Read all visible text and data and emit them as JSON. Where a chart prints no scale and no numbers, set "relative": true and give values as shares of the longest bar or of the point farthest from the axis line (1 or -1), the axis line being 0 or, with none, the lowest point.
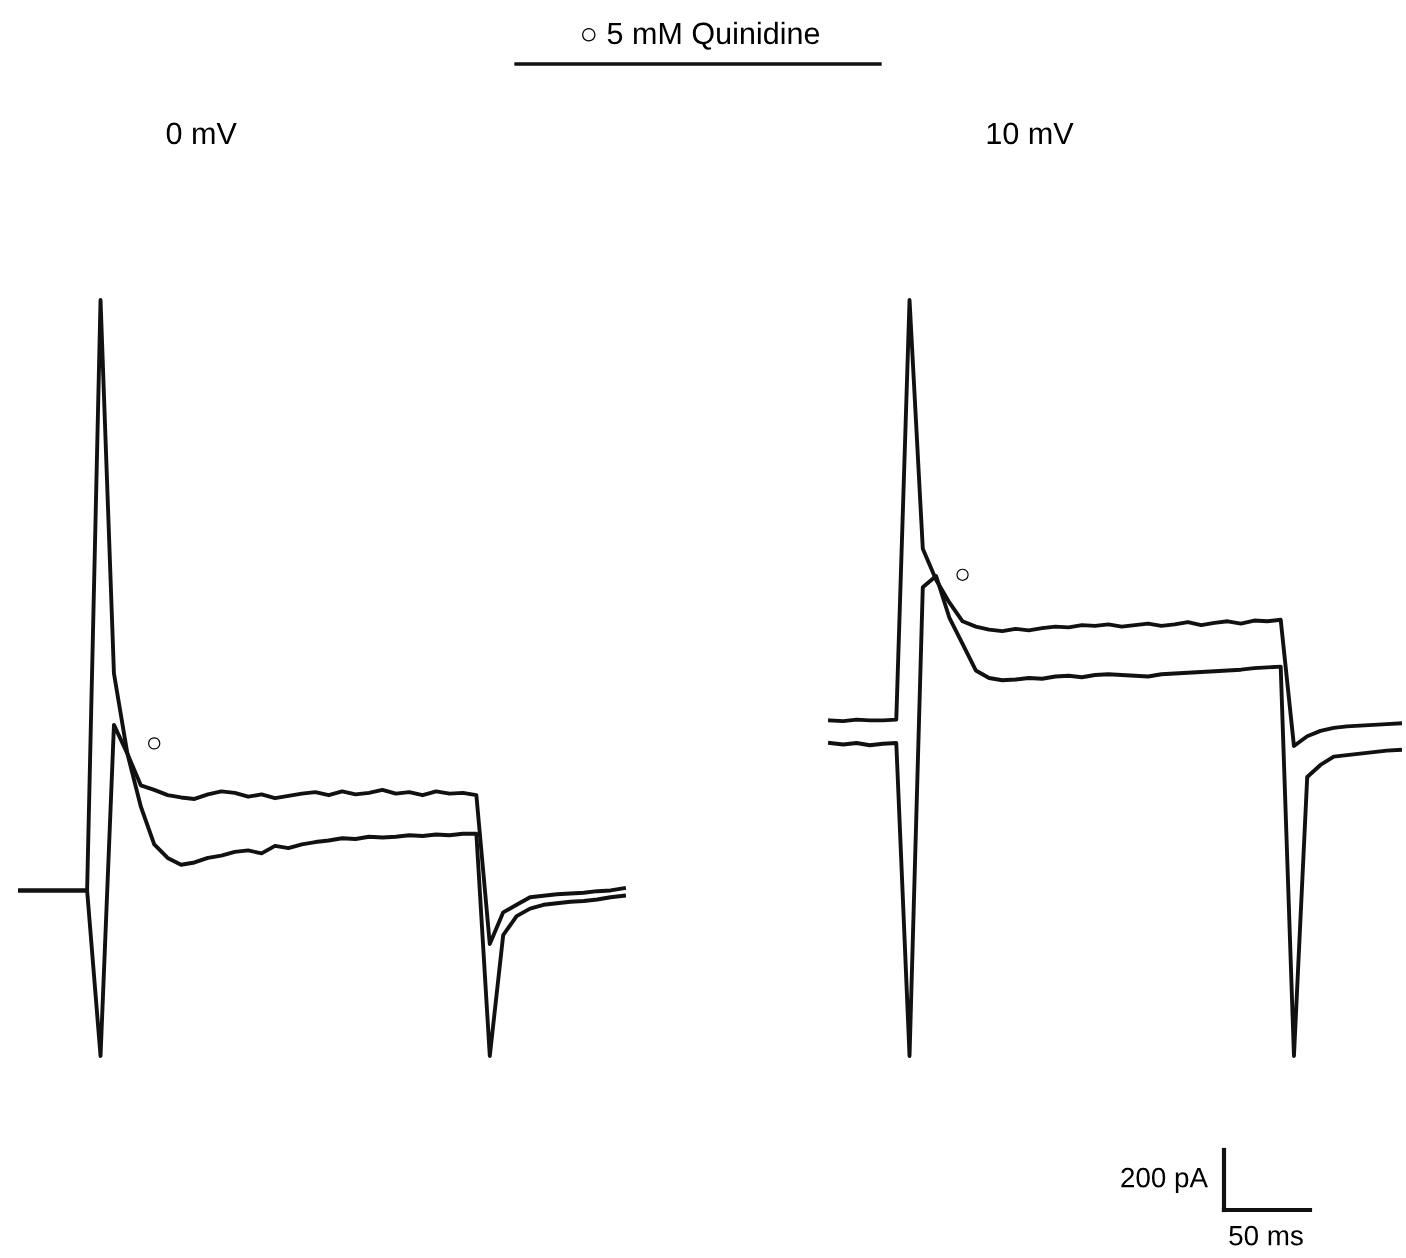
{
  "chart_data": [
    {
      "type": "line",
      "title": "0 mV",
      "relative": true,
      "annotations": [
        "○ 5 mM Quinidine"
      ],
      "categories": [
        null,
        null,
        null,
        null,
        null,
        null,
        null,
        null,
        null,
        null,
        null,
        null,
        null,
        null,
        null,
        null,
        null,
        null,
        null,
        null,
        null,
        null,
        null,
        null,
        null,
        null,
        null,
        null,
        null,
        null,
        null,
        null,
        null,
        null,
        null,
        null,
        null,
        null,
        null,
        null,
        null,
        null,
        null,
        null,
        null,
        null
      ],
      "series": [
        {
          "name": "○",
          "color": "#111111",
          "values": [
            0.219,
            0.219,
            0.219,
            0.219,
            0.219,
            0.219,
            1.0,
            0.506,
            0.4,
            0.358,
            0.352,
            0.345,
            0.342,
            0.34,
            0.346,
            0.35,
            0.348,
            0.343,
            0.346,
            0.341,
            0.344,
            0.347,
            0.349,
            0.345,
            0.35,
            0.346,
            0.348,
            0.352,
            0.347,
            0.349,
            0.345,
            0.35,
            0.347,
            0.348,
            0.345,
            0.148,
            0.19,
            0.2,
            0.21,
            0.212,
            0.214,
            0.215,
            0.216,
            0.218,
            0.219,
            0.222
          ]
        },
        {
          "color": "#111111",
          "values": [
            0.219,
            0.219,
            0.219,
            0.219,
            0.219,
            0.219,
            0.0,
            0.438,
            0.4,
            0.33,
            0.28,
            0.262,
            0.253,
            0.256,
            0.262,
            0.265,
            0.27,
            0.272,
            0.268,
            0.278,
            0.275,
            0.28,
            0.283,
            0.285,
            0.288,
            0.287,
            0.29,
            0.289,
            0.29,
            0.292,
            0.291,
            0.293,
            0.292,
            0.294,
            0.294,
            0.0,
            0.16,
            0.185,
            0.195,
            0.2,
            0.202,
            0.204,
            0.205,
            0.207,
            0.21,
            0.212
          ]
        }
      ]
    },
    {
      "type": "line",
      "title": "10 mV",
      "relative": true,
      "annotations": [
        "200 pA",
        "50 ms"
      ],
      "categories": [
        null,
        null,
        null,
        null,
        null,
        null,
        null,
        null,
        null,
        null,
        null,
        null,
        null,
        null,
        null,
        null,
        null,
        null,
        null,
        null,
        null,
        null,
        null,
        null,
        null,
        null,
        null,
        null,
        null,
        null,
        null,
        null,
        null,
        null,
        null,
        null,
        null,
        null,
        null,
        null,
        null,
        null,
        null,
        null
      ],
      "series": [
        {
          "name": "○",
          "color": "#111111",
          "values": [
            0.444,
            0.443,
            0.445,
            0.444,
            0.444,
            0.445,
            1.0,
            0.671,
            0.63,
            0.6,
            0.575,
            0.568,
            0.564,
            0.562,
            0.565,
            0.563,
            0.566,
            0.568,
            0.567,
            0.57,
            0.569,
            0.571,
            0.568,
            0.57,
            0.572,
            0.569,
            0.571,
            0.574,
            0.57,
            0.573,
            0.575,
            0.572,
            0.576,
            0.575,
            0.577,
            0.41,
            0.423,
            0.43,
            0.434,
            0.436,
            0.437,
            0.438,
            0.439,
            0.44
          ]
        },
        {
          "color": "#111111",
          "values": [
            0.414,
            0.412,
            0.414,
            0.411,
            0.413,
            0.414,
            0.0,
            0.62,
            0.635,
            0.58,
            0.545,
            0.51,
            0.5,
            0.497,
            0.498,
            0.5,
            0.499,
            0.502,
            0.503,
            0.501,
            0.504,
            0.505,
            0.504,
            0.503,
            0.502,
            0.505,
            0.506,
            0.507,
            0.508,
            0.509,
            0.51,
            0.511,
            0.513,
            0.514,
            0.515,
            0.0,
            0.369,
            0.385,
            0.396,
            0.398,
            0.4,
            0.402,
            0.404,
            0.405
          ]
        }
      ]
    }
  ]
}
